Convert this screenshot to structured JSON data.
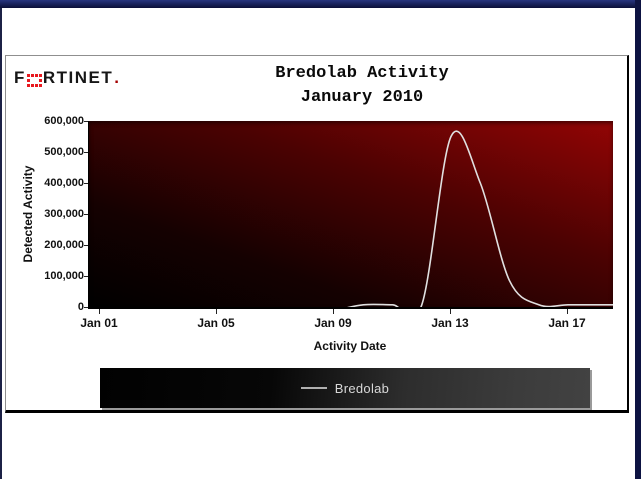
{
  "page": {
    "accent_navy": "#0d1342",
    "plot_red": "#930505",
    "background": "#ffffff"
  },
  "logo": {
    "brand_prefix": "F",
    "brand_suffix": "RTINET",
    "period": ".",
    "dot_color": "#e8191f"
  },
  "chart": {
    "title_line1": "Bredolab Activity",
    "title_line2": "January 2010",
    "y_axis_title": "Detected Activity",
    "x_axis_title": "Activity Date",
    "y_tick_labels": [
      "600,000",
      "500,000",
      "400,000",
      "300,000",
      "200,000",
      "100,000",
      "0"
    ],
    "x_tick_labels": [
      "Jan 01",
      "Jan 05",
      "Jan 09",
      "Jan 13",
      "Jan 17"
    ]
  },
  "legend": {
    "series_label": "Bredolab"
  },
  "chart_data": {
    "type": "line",
    "title": "Bredolab Activity",
    "subtitle": "January 2010",
    "xlabel": "Activity Date",
    "ylabel": "Detected Activity",
    "ylim": [
      0,
      600000
    ],
    "y_ticks": [
      0,
      100000,
      200000,
      300000,
      400000,
      500000,
      600000
    ],
    "x_tick_labels": [
      "Jan 01",
      "Jan 05",
      "Jan 09",
      "Jan 13",
      "Jan 17"
    ],
    "x": [
      "Jan 01",
      "Jan 02",
      "Jan 03",
      "Jan 04",
      "Jan 05",
      "Jan 06",
      "Jan 07",
      "Jan 08",
      "Jan 09",
      "Jan 10",
      "Jan 11",
      "Jan 12",
      "Jan 13",
      "Jan 14",
      "Jan 15",
      "Jan 16",
      "Jan 17",
      "Jan 18",
      "Jan 19"
    ],
    "series": [
      {
        "name": "Bredolab",
        "color": "#e0e0e0",
        "values": [
          0,
          0,
          0,
          0,
          0,
          0,
          0,
          0,
          0,
          4000,
          4000,
          5000,
          550000,
          400000,
          85000,
          5000,
          3000,
          3000,
          3000
        ]
      }
    ],
    "peak": {
      "date": "Jan 13",
      "value": 550000
    },
    "grid": false,
    "legend_position": "bottom",
    "plot_background": "black to dark-red diagonal gradient"
  }
}
